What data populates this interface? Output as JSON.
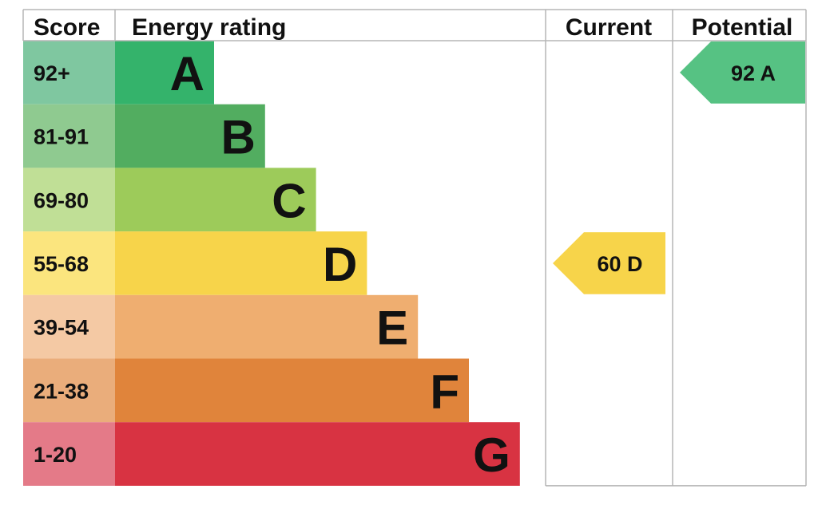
{
  "chart_data": {
    "type": "table",
    "headers": {
      "score": "Score",
      "energy_rating": "Energy rating",
      "current": "Current",
      "potential": "Potential"
    },
    "bands": [
      {
        "range": "92+",
        "letter": "A",
        "color": "#34b36b",
        "score_color": "#7fc7a0"
      },
      {
        "range": "81-91",
        "letter": "B",
        "color": "#52ad60",
        "score_color": "#8fca90"
      },
      {
        "range": "69-80",
        "letter": "C",
        "color": "#9dcb5a",
        "score_color": "#c0df96"
      },
      {
        "range": "55-68",
        "letter": "D",
        "color": "#f7d44a",
        "score_color": "#fbe57e"
      },
      {
        "range": "39-54",
        "letter": "E",
        "color": "#efae70",
        "score_color": "#f4c9a4"
      },
      {
        "range": "21-38",
        "letter": "F",
        "color": "#e0843b",
        "score_color": "#eaad7b"
      },
      {
        "range": "1-20",
        "letter": "G",
        "color": "#d83342",
        "score_color": "#e47a88"
      }
    ],
    "current": {
      "value": 60,
      "letter": "D",
      "label": "60  D",
      "color": "#f7d44a"
    },
    "potential": {
      "value": 92,
      "letter": "A",
      "label": "92  A",
      "color": "#56c283"
    }
  }
}
